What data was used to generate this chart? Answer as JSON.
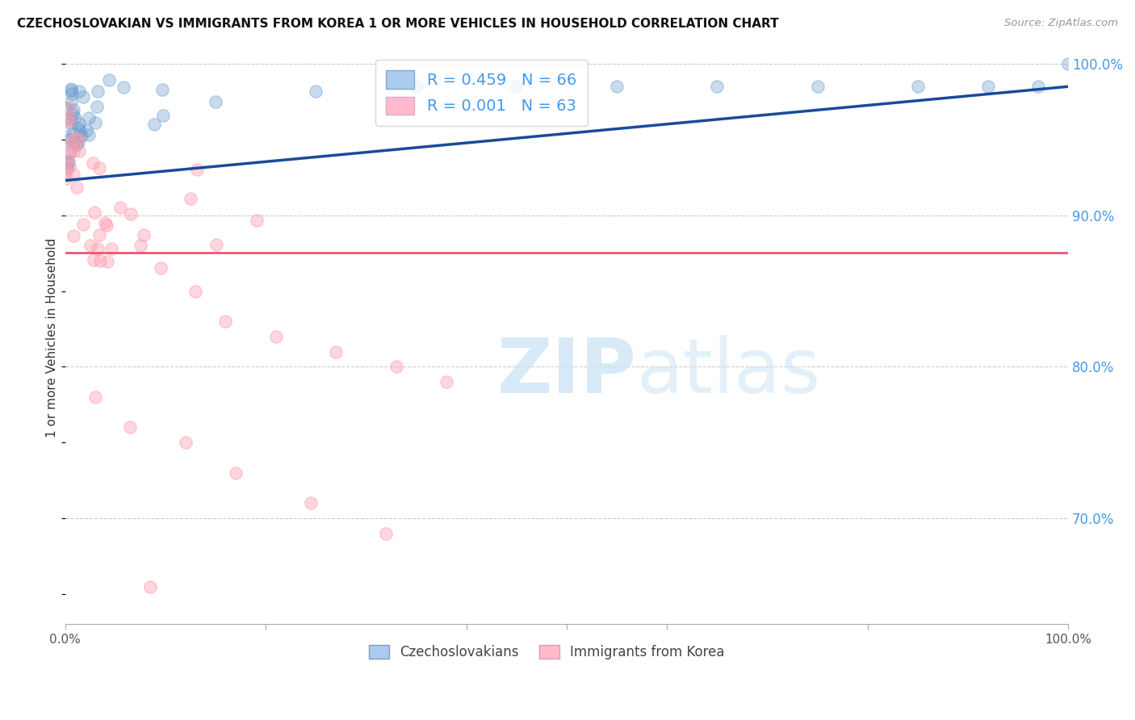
{
  "title": "CZECHOSLOVAKIAN VS IMMIGRANTS FROM KOREA 1 OR MORE VEHICLES IN HOUSEHOLD CORRELATION CHART",
  "source": "Source: ZipAtlas.com",
  "ylabel": "1 or more Vehicles in Household",
  "legend_label1": "Czechoslovakians",
  "legend_label2": "Immigrants from Korea",
  "R_czech": 0.459,
  "N_czech": 66,
  "R_korea": 0.001,
  "N_korea": 63,
  "background_color": "#ffffff",
  "grid_color": "#cccccc",
  "blue_color": "#6699cc",
  "pink_color": "#ff99aa",
  "blue_line_color": "#1a4a99",
  "pink_line_color": "#ee5577",
  "watermark_color": "#ddeeff",
  "ytick_color": "#4499ee",
  "czech_x": [
    0.002,
    0.003,
    0.003,
    0.004,
    0.004,
    0.004,
    0.005,
    0.005,
    0.005,
    0.006,
    0.006,
    0.006,
    0.006,
    0.007,
    0.007,
    0.007,
    0.007,
    0.008,
    0.008,
    0.008,
    0.008,
    0.009,
    0.009,
    0.009,
    0.01,
    0.01,
    0.01,
    0.011,
    0.011,
    0.012,
    0.012,
    0.013,
    0.013,
    0.014,
    0.015,
    0.016,
    0.017,
    0.018,
    0.02,
    0.022,
    0.024,
    0.026,
    0.03,
    0.035,
    0.04,
    0.05,
    0.06,
    0.07,
    0.08,
    0.09,
    0.1,
    0.12,
    0.15,
    0.18,
    0.22,
    0.28,
    0.35,
    0.43,
    0.52,
    0.6,
    0.7,
    0.8,
    0.88,
    0.92,
    0.96,
    1.0
  ],
  "czech_y": [
    0.96,
    0.965,
    0.97,
    0.97,
    0.975,
    0.98,
    0.975,
    0.98,
    0.985,
    0.98,
    0.98,
    0.985,
    0.985,
    0.985,
    0.985,
    0.985,
    0.985,
    0.985,
    0.985,
    0.985,
    0.985,
    0.985,
    0.985,
    0.985,
    0.985,
    0.985,
    0.985,
    0.985,
    0.985,
    0.985,
    0.985,
    0.985,
    0.985,
    0.985,
    0.985,
    0.985,
    0.985,
    0.985,
    0.985,
    0.985,
    0.985,
    0.985,
    0.985,
    0.985,
    0.985,
    0.985,
    0.985,
    0.985,
    0.985,
    0.985,
    0.985,
    0.985,
    0.985,
    0.985,
    0.985,
    0.985,
    0.985,
    0.985,
    0.985,
    0.985,
    0.985,
    0.985,
    0.985,
    0.985,
    0.985,
    1.0
  ],
  "korea_x": [
    0.002,
    0.003,
    0.003,
    0.004,
    0.004,
    0.005,
    0.005,
    0.006,
    0.006,
    0.007,
    0.007,
    0.008,
    0.008,
    0.009,
    0.009,
    0.01,
    0.01,
    0.011,
    0.012,
    0.013,
    0.014,
    0.015,
    0.016,
    0.017,
    0.018,
    0.02,
    0.022,
    0.025,
    0.028,
    0.032,
    0.038,
    0.045,
    0.055,
    0.065,
    0.08,
    0.095,
    0.11,
    0.13,
    0.15,
    0.175,
    0.2,
    0.23,
    0.26,
    0.3,
    0.33,
    0.37,
    0.41,
    0.25,
    0.17,
    0.09,
    0.05,
    0.03,
    0.015,
    0.008,
    0.005,
    0.003,
    0.012,
    0.02,
    0.035,
    0.06,
    0.1,
    0.35,
    0.15
  ],
  "korea_y": [
    0.96,
    0.955,
    0.93,
    0.945,
    0.935,
    0.95,
    0.94,
    0.93,
    0.945,
    0.94,
    0.925,
    0.94,
    0.935,
    0.93,
    0.92,
    0.93,
    0.935,
    0.92,
    0.93,
    0.915,
    0.92,
    0.91,
    0.905,
    0.93,
    0.91,
    0.905,
    0.91,
    0.9,
    0.905,
    0.895,
    0.91,
    0.9,
    0.895,
    0.91,
    0.905,
    0.9,
    0.9,
    0.895,
    0.9,
    0.89,
    0.875,
    0.875,
    0.868,
    0.87,
    0.865,
    0.86,
    0.855,
    0.82,
    0.82,
    0.81,
    0.8,
    0.79,
    0.785,
    0.78,
    0.775,
    0.77,
    0.76,
    0.75,
    0.735,
    0.72,
    0.705,
    0.665,
    0.678
  ],
  "xlim": [
    0.0,
    1.0
  ],
  "ylim": [
    0.63,
    1.008
  ]
}
